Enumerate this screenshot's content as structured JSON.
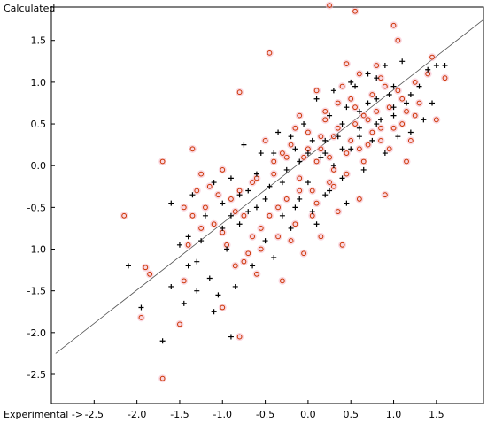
{
  "chart_data": {
    "type": "scatter",
    "title": "",
    "xlabel": "Experimental ->",
    "ylabel": "Calculated",
    "xlim": [
      -3.0,
      2.05
    ],
    "ylim": [
      -2.85,
      1.9
    ],
    "x_ticks": [
      "-2.5",
      "-2.0",
      "-1.5",
      "-1.0",
      "-0.5",
      "0.0",
      "0.5",
      "1.0",
      "1.5"
    ],
    "y_ticks": [
      "1.5",
      "1.0",
      "0.5",
      "0.0",
      "-0.5",
      "-1.0",
      "-1.5",
      "-2.0",
      "-2.5"
    ],
    "grid": false,
    "legend": "none",
    "fit_line": {
      "slope": 0.8,
      "intercept": 0.11,
      "x_range": [
        -2.95,
        2.05
      ]
    },
    "series": [
      {
        "marker": "circle",
        "color": "#cc3300",
        "halo": "#f5b8c8",
        "points": [
          [
            -2.15,
            -0.6
          ],
          [
            -1.9,
            -1.22
          ],
          [
            -1.85,
            -1.3
          ],
          [
            -1.95,
            -1.82
          ],
          [
            -1.7,
            -2.55
          ],
          [
            -1.7,
            0.05
          ],
          [
            -1.5,
            -1.9
          ],
          [
            -1.45,
            -1.38
          ],
          [
            -1.4,
            -0.95
          ],
          [
            -1.35,
            -0.6
          ],
          [
            -1.35,
            0.2
          ],
          [
            -1.3,
            -0.3
          ],
          [
            -1.25,
            -0.1
          ],
          [
            -1.2,
            -0.5
          ],
          [
            -1.15,
            -0.25
          ],
          [
            -1.1,
            -0.7
          ],
          [
            -1.0,
            -1.7
          ],
          [
            -1.0,
            -0.8
          ],
          [
            -0.9,
            -0.4
          ],
          [
            -0.85,
            -1.2
          ],
          [
            -0.8,
            -2.05
          ],
          [
            -0.8,
            0.88
          ],
          [
            -0.75,
            -0.6
          ],
          [
            -0.7,
            -1.05
          ],
          [
            -0.65,
            -0.2
          ],
          [
            -0.6,
            -1.3
          ],
          [
            -0.55,
            -0.75
          ],
          [
            -0.5,
            0.3
          ],
          [
            -0.45,
            1.35
          ],
          [
            -0.4,
            -0.1
          ],
          [
            -0.35,
            -0.5
          ],
          [
            -0.3,
            -1.38
          ],
          [
            -0.25,
            0.1
          ],
          [
            -0.2,
            -0.9
          ],
          [
            -0.15,
            0.45
          ],
          [
            -0.1,
            -0.3
          ],
          [
            -0.05,
            -1.05
          ],
          [
            0.0,
            0.2
          ],
          [
            0.05,
            -0.6
          ],
          [
            0.1,
            0.05
          ],
          [
            0.15,
            -0.85
          ],
          [
            0.2,
            0.55
          ],
          [
            0.25,
            -0.2
          ],
          [
            0.3,
            0.35
          ],
          [
            0.35,
            -0.55
          ],
          [
            0.4,
            -0.95
          ],
          [
            0.45,
            0.15
          ],
          [
            0.5,
            0.8
          ],
          [
            0.55,
            1.85
          ],
          [
            0.6,
            -0.4
          ],
          [
            0.65,
            0.6
          ],
          [
            0.7,
            0.25
          ],
          [
            0.8,
            1.2
          ],
          [
            0.85,
            0.45
          ],
          [
            0.9,
            -0.35
          ],
          [
            1.0,
            1.68
          ],
          [
            1.05,
            1.5
          ],
          [
            1.1,
            0.5
          ],
          [
            1.15,
            0.05
          ],
          [
            1.2,
            0.3
          ],
          [
            1.3,
            0.75
          ],
          [
            1.4,
            1.1
          ],
          [
            1.45,
            1.3
          ],
          [
            1.5,
            0.55
          ],
          [
            1.6,
            1.05
          ],
          [
            0.25,
            1.92
          ],
          [
            0.45,
            1.22
          ],
          [
            0.1,
            0.9
          ],
          [
            -0.1,
            0.6
          ],
          [
            0.3,
            -0.05
          ],
          [
            0.6,
            0.2
          ],
          [
            0.75,
            0.85
          ],
          [
            0.95,
            0.7
          ],
          [
            1.25,
            0.6
          ],
          [
            0.85,
            1.05
          ],
          [
            0.55,
            0.5
          ],
          [
            0.35,
            0.75
          ],
          [
            0.15,
            0.35
          ],
          [
            -0.05,
            0.1
          ],
          [
            -0.25,
            -0.4
          ],
          [
            -0.45,
            -0.6
          ],
          [
            -0.65,
            -0.85
          ],
          [
            -0.85,
            -0.55
          ],
          [
            -1.05,
            -0.35
          ],
          [
            -1.25,
            -0.75
          ],
          [
            -1.45,
            -0.5
          ],
          [
            0.05,
            -0.3
          ],
          [
            0.25,
            0.1
          ],
          [
            0.45,
            -0.1
          ],
          [
            0.65,
            0.05
          ],
          [
            0.85,
            0.3
          ],
          [
            1.05,
            0.9
          ],
          [
            1.25,
            1.0
          ],
          [
            0.0,
            0.4
          ],
          [
            -0.2,
            0.25
          ],
          [
            -0.4,
            0.05
          ],
          [
            -0.6,
            -0.15
          ],
          [
            -0.8,
            -0.3
          ],
          [
            -1.0,
            -0.05
          ],
          [
            0.1,
            -0.45
          ],
          [
            0.3,
            -0.25
          ],
          [
            0.5,
            0.3
          ],
          [
            0.7,
            0.55
          ],
          [
            0.9,
            0.95
          ],
          [
            1.1,
            0.8
          ],
          [
            -0.15,
            -0.7
          ],
          [
            -0.35,
            -0.85
          ],
          [
            -0.55,
            -1.0
          ],
          [
            -0.75,
            -1.15
          ],
          [
            -0.95,
            -0.95
          ],
          [
            0.2,
            0.65
          ],
          [
            0.4,
            0.95
          ],
          [
            0.6,
            1.1
          ],
          [
            0.8,
            0.65
          ],
          [
            1.0,
            0.45
          ],
          [
            -0.3,
            0.15
          ],
          [
            -0.1,
            -0.15
          ],
          [
            0.15,
            0.2
          ],
          [
            0.35,
            0.45
          ],
          [
            0.55,
            0.7
          ],
          [
            0.75,
            0.4
          ],
          [
            0.95,
            0.2
          ],
          [
            1.15,
            0.65
          ]
        ]
      },
      {
        "marker": "plus",
        "color": "#000000",
        "points": [
          [
            -2.1,
            -1.2
          ],
          [
            -1.95,
            -1.7
          ],
          [
            -1.7,
            -2.1
          ],
          [
            -1.6,
            -1.45
          ],
          [
            -1.6,
            -0.45
          ],
          [
            -1.45,
            -1.65
          ],
          [
            -1.4,
            -0.85
          ],
          [
            -1.35,
            -0.35
          ],
          [
            -1.3,
            -1.15
          ],
          [
            -1.2,
            -0.6
          ],
          [
            -1.15,
            -1.35
          ],
          [
            -1.1,
            -0.2
          ],
          [
            -1.05,
            -1.55
          ],
          [
            -1.0,
            -0.45
          ],
          [
            -0.95,
            -1.0
          ],
          [
            -0.9,
            -0.15
          ],
          [
            -0.85,
            -1.45
          ],
          [
            -0.8,
            -0.7
          ],
          [
            -0.75,
            0.25
          ],
          [
            -0.7,
            -0.3
          ],
          [
            -0.65,
            -1.2
          ],
          [
            -0.6,
            -0.5
          ],
          [
            -0.55,
            0.15
          ],
          [
            -0.5,
            -0.9
          ],
          [
            -0.45,
            -0.25
          ],
          [
            -0.4,
            -1.1
          ],
          [
            -0.35,
            0.4
          ],
          [
            -0.3,
            -0.6
          ],
          [
            -0.25,
            -0.05
          ],
          [
            -0.2,
            -0.75
          ],
          [
            -0.15,
            0.2
          ],
          [
            -0.1,
            -0.4
          ],
          [
            -0.05,
            0.5
          ],
          [
            0.0,
            -0.2
          ],
          [
            0.05,
            0.3
          ],
          [
            0.1,
            -0.7
          ],
          [
            0.15,
            0.1
          ],
          [
            0.2,
            -0.35
          ],
          [
            0.25,
            0.6
          ],
          [
            0.3,
            0.0
          ],
          [
            0.35,
            0.35
          ],
          [
            0.4,
            -0.15
          ],
          [
            0.45,
            0.7
          ],
          [
            0.5,
            0.2
          ],
          [
            0.55,
            0.95
          ],
          [
            0.6,
            0.45
          ],
          [
            0.65,
            -0.05
          ],
          [
            0.7,
            0.75
          ],
          [
            0.75,
            0.3
          ],
          [
            0.8,
            1.05
          ],
          [
            0.85,
            0.55
          ],
          [
            0.9,
            0.15
          ],
          [
            0.95,
            0.85
          ],
          [
            1.0,
            0.6
          ],
          [
            1.05,
            0.35
          ],
          [
            1.1,
            1.25
          ],
          [
            1.15,
            0.75
          ],
          [
            1.2,
            0.4
          ],
          [
            1.3,
            0.95
          ],
          [
            1.35,
            0.55
          ],
          [
            1.4,
            1.15
          ],
          [
            1.45,
            0.75
          ],
          [
            1.5,
            1.2
          ],
          [
            1.6,
            1.2
          ],
          [
            -1.1,
            -1.75
          ],
          [
            -0.9,
            -2.05
          ],
          [
            -1.4,
            -1.2
          ],
          [
            -1.25,
            -0.9
          ],
          [
            0.1,
            0.8
          ],
          [
            0.3,
            0.9
          ],
          [
            0.5,
            1.0
          ],
          [
            0.7,
            1.1
          ],
          [
            0.9,
            1.2
          ],
          [
            -0.2,
            0.35
          ],
          [
            -0.4,
            0.15
          ],
          [
            -0.6,
            -0.1
          ],
          [
            -0.8,
            -0.35
          ],
          [
            -1.0,
            -0.75
          ],
          [
            0.2,
            0.15
          ],
          [
            0.4,
            0.5
          ],
          [
            0.6,
            0.65
          ],
          [
            0.8,
            0.8
          ],
          [
            1.0,
            0.95
          ],
          [
            -0.1,
            0.05
          ],
          [
            -0.3,
            -0.2
          ],
          [
            -0.5,
            -0.4
          ],
          [
            -0.7,
            -0.55
          ],
          [
            -0.9,
            -0.6
          ],
          [
            0.0,
            0.15
          ],
          [
            0.2,
            0.3
          ],
          [
            0.4,
            0.2
          ],
          [
            0.6,
            0.35
          ],
          [
            0.8,
            0.5
          ],
          [
            1.0,
            0.7
          ],
          [
            1.2,
            0.85
          ],
          [
            -1.5,
            -0.95
          ],
          [
            -1.3,
            -1.5
          ],
          [
            -0.15,
            -0.5
          ],
          [
            0.05,
            -0.55
          ],
          [
            0.25,
            -0.3
          ],
          [
            0.45,
            -0.45
          ]
        ]
      }
    ]
  }
}
